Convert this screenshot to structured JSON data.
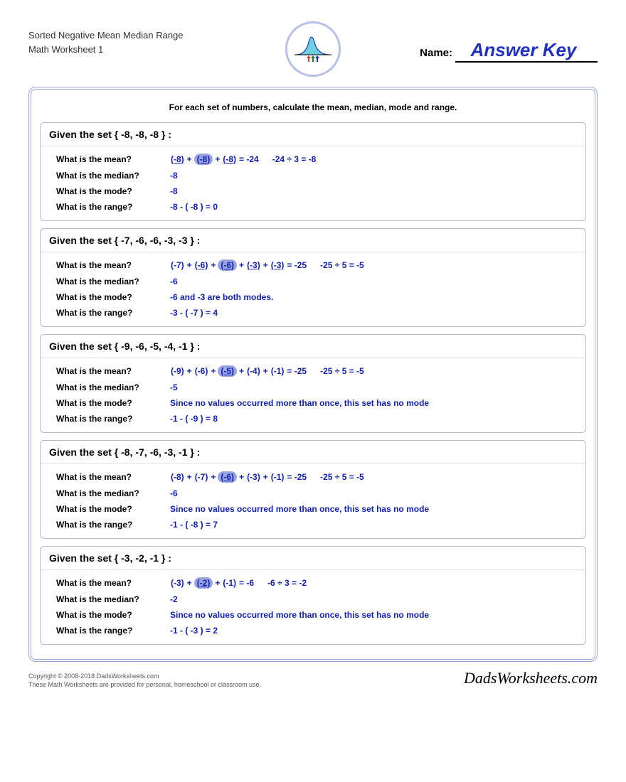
{
  "header": {
    "title_line1": "Sorted Negative Mean Median Range",
    "title_line2": "Math Worksheet 1",
    "name_label": "Name:",
    "answer_key": "Answer Key"
  },
  "instructions": "For each set of numbers, calculate the mean, median, mode and range.",
  "labels": {
    "mean": "What is the mean?",
    "median": "What is the median?",
    "mode": "What is the mode?",
    "range": "What is the range?"
  },
  "problems": [
    {
      "set_title": "Given the set { -8, -8, -8 } :",
      "mean": {
        "terms": [
          "(-8)",
          "(-8)",
          "(-8)"
        ],
        "underlined": [
          true,
          true,
          true
        ],
        "middle_idx": 1,
        "sum": "= -24",
        "division": "-24 ÷ 3 = -8"
      },
      "median": "-8",
      "mode": "-8",
      "range": "-8 - ( -8 ) = 0"
    },
    {
      "set_title": "Given the set { -7, -6, -6, -3, -3 } :",
      "mean": {
        "terms": [
          "(-7)",
          "(-6)",
          "(-6)",
          "(-3)",
          "(-3)"
        ],
        "underlined": [
          false,
          true,
          true,
          true,
          true
        ],
        "middle_idx": 2,
        "sum": "= -25",
        "division": "-25 ÷ 5 = -5"
      },
      "median": "-6",
      "mode": "-6 and -3 are both modes.",
      "range": "-3 - ( -7 ) = 4"
    },
    {
      "set_title": "Given the set { -9, -6, -5, -4, -1 } :",
      "mean": {
        "terms": [
          "(-9)",
          "(-6)",
          "(-5)",
          "(-4)",
          "(-1)"
        ],
        "underlined": [
          false,
          false,
          false,
          false,
          false
        ],
        "middle_idx": 2,
        "sum": "= -25",
        "division": "-25 ÷ 5 = -5"
      },
      "median": "-5",
      "mode": "Since no values occurred more than once, this set has no mode",
      "range": "-1 - ( -9 ) = 8"
    },
    {
      "set_title": "Given the set { -8, -7, -6, -3, -1 } :",
      "mean": {
        "terms": [
          "(-8)",
          "(-7)",
          "(-6)",
          "(-3)",
          "(-1)"
        ],
        "underlined": [
          false,
          false,
          false,
          false,
          false
        ],
        "middle_idx": 2,
        "sum": "= -25",
        "division": "-25 ÷ 5 = -5"
      },
      "median": "-6",
      "mode": "Since no values occurred more than once, this set has no mode",
      "range": "-1 - ( -8 ) = 7"
    },
    {
      "set_title": "Given the set { -3, -2, -1 } :",
      "mean": {
        "terms": [
          "(-3)",
          "(-2)",
          "(-1)"
        ],
        "underlined": [
          false,
          false,
          false
        ],
        "middle_idx": 1,
        "sum": "= -6",
        "division": "-6 ÷ 3 = -2"
      },
      "median": "-2",
      "mode": "Since no values occurred more than once, this set has no mode",
      "range": "-1 - ( -3 ) = 2"
    }
  ],
  "footer": {
    "copyright": "Copyright © 2008-2018 DadsWorksheets.com",
    "disclaimer": "These Math Worksheets are provided for personal, homeschool or classroom use.",
    "brand": "DadsWorksheets.com"
  },
  "colors": {
    "accent": "#9aa5e0",
    "answer_text": "#1020b0",
    "answer_key": "#2030c0"
  }
}
